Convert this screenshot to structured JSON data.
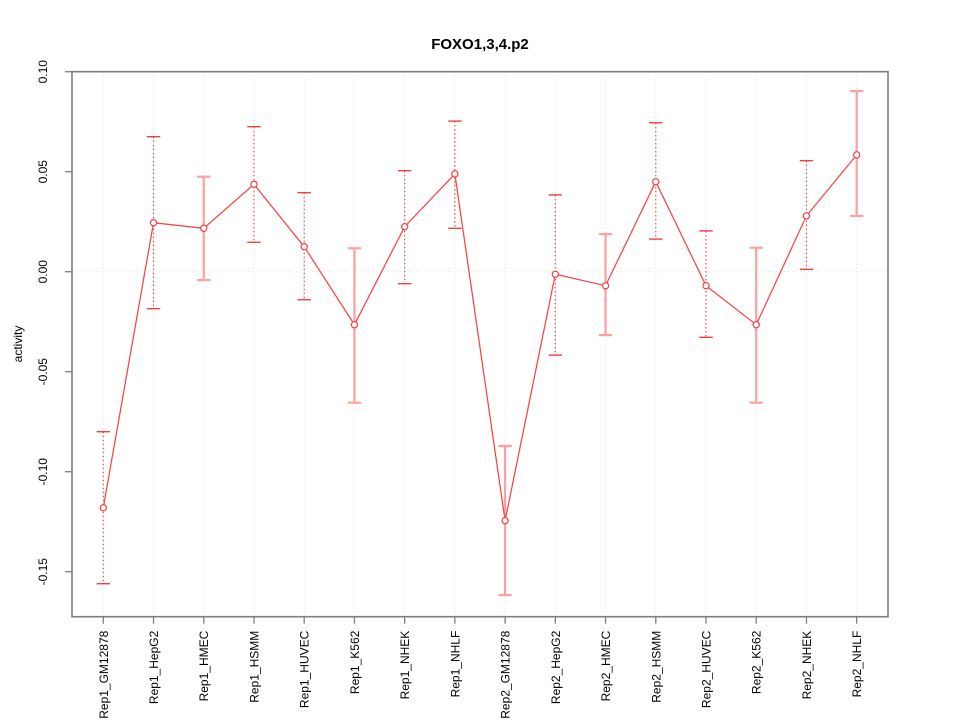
{
  "chart_data": {
    "type": "line",
    "title": "FOXO1,3,4.p2",
    "xlabel": "",
    "ylabel": "activity",
    "legend": "none",
    "grid": {
      "vertical": "per-category-dotted",
      "horizontal_at": 0,
      "style": "dotted"
    },
    "ylim": [
      -0.1725,
      0.1005
    ],
    "yticks": [
      0.1,
      0.05,
      0.0,
      -0.05,
      -0.1,
      -0.15
    ],
    "ytick_labels": [
      "0.10",
      "0.05",
      "0.00",
      "-0.05",
      "-0.10",
      "-0.15"
    ],
    "categories": [
      "Rep1_GM12878",
      "Rep1_HepG2",
      "Rep1_HMEC",
      "Rep1_HSMM",
      "Rep1_HUVEC",
      "Rep1_K562",
      "Rep1_NHEK",
      "Rep1_NHLF",
      "Rep2_GM12878",
      "Rep2_HepG2",
      "Rep2_HMEC",
      "Rep2_HSMM",
      "Rep2_HUVEC",
      "Rep2_K562",
      "Rep2_NHEK",
      "Rep2_NHLF"
    ],
    "series": [
      {
        "name": "activity",
        "marker": "open-circle",
        "values": [
          -0.118,
          0.0245,
          0.0217,
          0.0437,
          0.0125,
          -0.0265,
          0.0225,
          0.0489,
          -0.1245,
          -0.0013,
          -0.007,
          0.045,
          -0.007,
          -0.0265,
          0.0279,
          0.0584
        ],
        "error_low": [
          -0.156,
          -0.0185,
          -0.0042,
          0.0147,
          -0.014,
          -0.0655,
          -0.006,
          0.0217,
          -0.1617,
          -0.0417,
          -0.0317,
          0.0163,
          -0.0328,
          -0.0655,
          0.0012,
          0.0279
        ],
        "error_high": [
          -0.08,
          0.0675,
          0.0475,
          0.0725,
          0.0395,
          0.0117,
          0.0505,
          0.0753,
          -0.0872,
          0.0384,
          0.0188,
          0.0745,
          0.0204,
          0.012,
          0.0555,
          0.0903
        ],
        "error_bar_styles": [
          "dotted",
          "dotted",
          "solid",
          "dotted",
          "dotted",
          "solid",
          "dotted",
          "dotted",
          "solid",
          "dotted",
          "solid",
          "dotted",
          "dotted",
          "solid",
          "dotted",
          "solid"
        ]
      }
    ],
    "colors": {
      "series_red": "#f54545",
      "errorbar_dotted": "#f04040",
      "errorbar_solid": "#ff9f9f",
      "box": "#7f7f7f",
      "grid": "#dbdbdb",
      "text": "#000000",
      "background": "#ffffff"
    }
  }
}
